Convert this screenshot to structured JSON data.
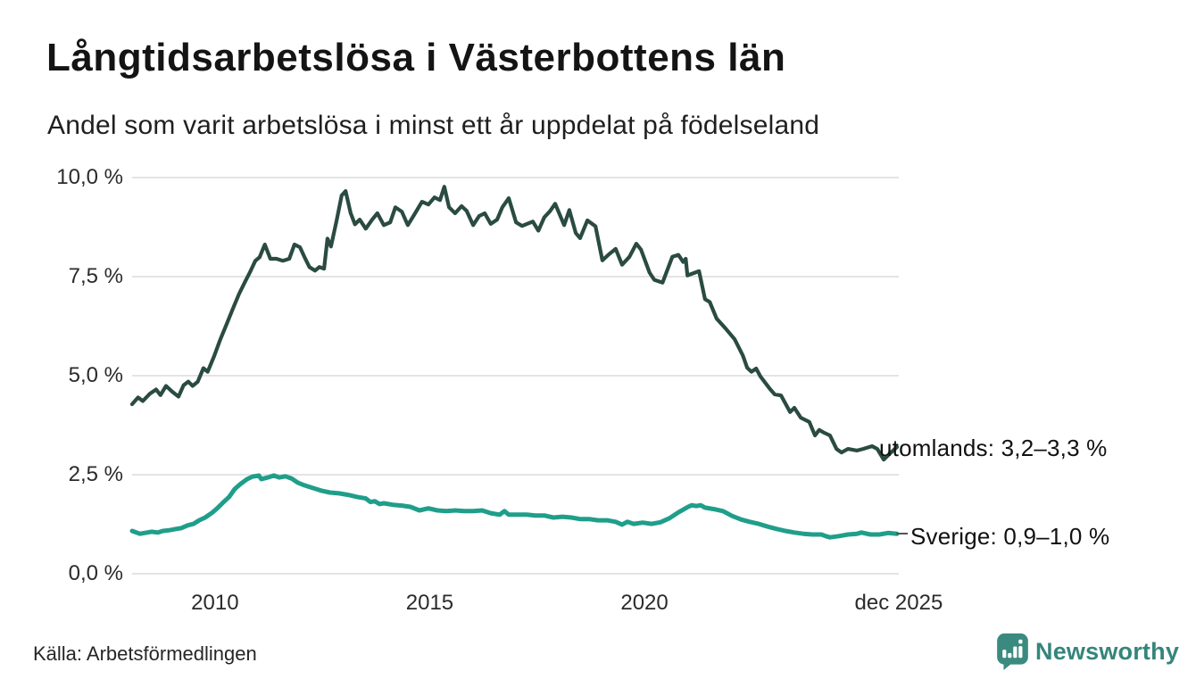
{
  "header": {
    "title": "Långtidsarbetslösa i Västerbottens län",
    "subtitle": "Andel som varit arbetslösa i minst ett år uppdelat på födelseland"
  },
  "chart_data": {
    "type": "line",
    "title": "Långtidsarbetslösa i Västerbottens län",
    "subtitle": "Andel som varit arbetslösa i minst ett år uppdelat på födelseland",
    "unit": "%",
    "grid": true,
    "x_axis": {
      "range": [
        2008.07,
        2025.88
      ],
      "ticks": [
        {
          "label": "2010",
          "year": 2010
        },
        {
          "label": "2015",
          "year": 2015
        },
        {
          "label": "2020",
          "year": 2020
        },
        {
          "label": "dec 2025",
          "year": 2025.92
        }
      ]
    },
    "y_axis": {
      "range": [
        0,
        10
      ],
      "ticks": [
        {
          "label": "0,0 %",
          "value": 0
        },
        {
          "label": "2,5 %",
          "value": 2.5
        },
        {
          "label": "5,0 %",
          "value": 5
        },
        {
          "label": "7,5 %",
          "value": 7.5
        },
        {
          "label": "10,0 %",
          "value": 10
        }
      ]
    },
    "series": [
      {
        "id": "utomlands",
        "name": "utomlands",
        "end_label": "utomlands: 3,2–3,3 %",
        "end_value_range": "3,2–3,3 %",
        "color": "#2a4b42",
        "width": 4.2,
        "points": [
          [
            2008.07,
            4.28
          ],
          [
            2008.21,
            4.45
          ],
          [
            2008.32,
            4.36
          ],
          [
            2008.48,
            4.54
          ],
          [
            2008.63,
            4.65
          ],
          [
            2008.73,
            4.51
          ],
          [
            2008.86,
            4.74
          ],
          [
            2009.0,
            4.6
          ],
          [
            2009.15,
            4.47
          ],
          [
            2009.27,
            4.76
          ],
          [
            2009.38,
            4.85
          ],
          [
            2009.48,
            4.74
          ],
          [
            2009.6,
            4.85
          ],
          [
            2009.73,
            5.19
          ],
          [
            2009.83,
            5.1
          ],
          [
            2009.98,
            5.49
          ],
          [
            2010.12,
            5.9
          ],
          [
            2010.27,
            6.3
          ],
          [
            2010.42,
            6.7
          ],
          [
            2010.56,
            7.06
          ],
          [
            2010.69,
            7.35
          ],
          [
            2010.81,
            7.6
          ],
          [
            2010.94,
            7.9
          ],
          [
            2011.04,
            7.99
          ],
          [
            2011.16,
            8.31
          ],
          [
            2011.29,
            7.95
          ],
          [
            2011.43,
            7.95
          ],
          [
            2011.58,
            7.9
          ],
          [
            2011.73,
            7.95
          ],
          [
            2011.85,
            8.31
          ],
          [
            2011.98,
            8.24
          ],
          [
            2012.08,
            8.0
          ],
          [
            2012.2,
            7.74
          ],
          [
            2012.33,
            7.65
          ],
          [
            2012.43,
            7.74
          ],
          [
            2012.54,
            7.7
          ],
          [
            2012.62,
            8.46
          ],
          [
            2012.7,
            8.26
          ],
          [
            2012.83,
            8.9
          ],
          [
            2012.95,
            9.55
          ],
          [
            2013.04,
            9.66
          ],
          [
            2013.16,
            9.1
          ],
          [
            2013.26,
            8.82
          ],
          [
            2013.37,
            8.94
          ],
          [
            2013.51,
            8.71
          ],
          [
            2013.66,
            8.94
          ],
          [
            2013.78,
            9.1
          ],
          [
            2013.93,
            8.8
          ],
          [
            2014.08,
            8.87
          ],
          [
            2014.2,
            9.25
          ],
          [
            2014.35,
            9.14
          ],
          [
            2014.49,
            8.8
          ],
          [
            2014.62,
            9.03
          ],
          [
            2014.82,
            9.39
          ],
          [
            2014.97,
            9.32
          ],
          [
            2015.11,
            9.5
          ],
          [
            2015.24,
            9.43
          ],
          [
            2015.34,
            9.77
          ],
          [
            2015.45,
            9.25
          ],
          [
            2015.59,
            9.1
          ],
          [
            2015.74,
            9.28
          ],
          [
            2015.86,
            9.16
          ],
          [
            2016.01,
            8.8
          ],
          [
            2016.15,
            9.03
          ],
          [
            2016.28,
            9.1
          ],
          [
            2016.42,
            8.83
          ],
          [
            2016.57,
            8.94
          ],
          [
            2016.69,
            9.25
          ],
          [
            2016.84,
            9.48
          ],
          [
            2017.01,
            8.87
          ],
          [
            2017.15,
            8.78
          ],
          [
            2017.4,
            8.89
          ],
          [
            2017.53,
            8.66
          ],
          [
            2017.67,
            9.0
          ],
          [
            2017.8,
            9.15
          ],
          [
            2017.92,
            9.34
          ],
          [
            2018.13,
            8.8
          ],
          [
            2018.25,
            9.18
          ],
          [
            2018.4,
            8.6
          ],
          [
            2018.5,
            8.47
          ],
          [
            2018.67,
            8.92
          ],
          [
            2018.86,
            8.77
          ],
          [
            2019.02,
            7.91
          ],
          [
            2019.17,
            8.06
          ],
          [
            2019.33,
            8.2
          ],
          [
            2019.48,
            7.8
          ],
          [
            2019.65,
            8.0
          ],
          [
            2019.81,
            8.33
          ],
          [
            2019.92,
            8.18
          ],
          [
            2020.12,
            7.6
          ],
          [
            2020.23,
            7.42
          ],
          [
            2020.42,
            7.35
          ],
          [
            2020.65,
            8.0
          ],
          [
            2020.79,
            8.05
          ],
          [
            2020.9,
            7.87
          ],
          [
            2020.96,
            7.95
          ],
          [
            2021.0,
            7.53
          ],
          [
            2021.17,
            7.6
          ],
          [
            2021.27,
            7.64
          ],
          [
            2021.41,
            6.93
          ],
          [
            2021.52,
            6.86
          ],
          [
            2021.68,
            6.44
          ],
          [
            2021.89,
            6.19
          ],
          [
            2022.1,
            5.92
          ],
          [
            2022.29,
            5.51
          ],
          [
            2022.39,
            5.2
          ],
          [
            2022.49,
            5.1
          ],
          [
            2022.6,
            5.18
          ],
          [
            2022.7,
            4.98
          ],
          [
            2022.91,
            4.68
          ],
          [
            2023.03,
            4.53
          ],
          [
            2023.18,
            4.5
          ],
          [
            2023.39,
            4.08
          ],
          [
            2023.49,
            4.19
          ],
          [
            2023.64,
            3.94
          ],
          [
            2023.84,
            3.83
          ],
          [
            2023.97,
            3.49
          ],
          [
            2024.07,
            3.63
          ],
          [
            2024.18,
            3.56
          ],
          [
            2024.32,
            3.49
          ],
          [
            2024.47,
            3.15
          ],
          [
            2024.59,
            3.06
          ],
          [
            2024.74,
            3.15
          ],
          [
            2024.95,
            3.11
          ],
          [
            2025.09,
            3.15
          ],
          [
            2025.3,
            3.22
          ],
          [
            2025.42,
            3.15
          ],
          [
            2025.57,
            2.88
          ],
          [
            2025.72,
            3.04
          ],
          [
            2025.88,
            3.2
          ]
        ]
      },
      {
        "id": "sverige",
        "name": "Sverige",
        "end_label": "Sverige: 0,9–1,0 %",
        "end_value_range": "0,9–1,0 %",
        "color": "#1f9e8a",
        "width": 5,
        "points": [
          [
            2008.07,
            1.08
          ],
          [
            2008.25,
            1.01
          ],
          [
            2008.42,
            1.04
          ],
          [
            2008.52,
            1.06
          ],
          [
            2008.67,
            1.04
          ],
          [
            2008.79,
            1.08
          ],
          [
            2008.94,
            1.1
          ],
          [
            2009.09,
            1.13
          ],
          [
            2009.21,
            1.15
          ],
          [
            2009.36,
            1.22
          ],
          [
            2009.5,
            1.26
          ],
          [
            2009.63,
            1.35
          ],
          [
            2009.77,
            1.42
          ],
          [
            2009.92,
            1.53
          ],
          [
            2010.04,
            1.64
          ],
          [
            2010.19,
            1.8
          ],
          [
            2010.33,
            1.94
          ],
          [
            2010.46,
            2.14
          ],
          [
            2010.6,
            2.27
          ],
          [
            2010.75,
            2.39
          ],
          [
            2010.87,
            2.45
          ],
          [
            2011.02,
            2.48
          ],
          [
            2011.08,
            2.39
          ],
          [
            2011.23,
            2.43
          ],
          [
            2011.37,
            2.48
          ],
          [
            2011.5,
            2.43
          ],
          [
            2011.64,
            2.46
          ],
          [
            2011.79,
            2.4
          ],
          [
            2011.93,
            2.3
          ],
          [
            2012.06,
            2.24
          ],
          [
            2012.27,
            2.17
          ],
          [
            2012.47,
            2.1
          ],
          [
            2012.68,
            2.05
          ],
          [
            2012.89,
            2.03
          ],
          [
            2013.1,
            1.99
          ],
          [
            2013.31,
            1.94
          ],
          [
            2013.51,
            1.9
          ],
          [
            2013.62,
            1.81
          ],
          [
            2013.72,
            1.83
          ],
          [
            2013.83,
            1.76
          ],
          [
            2013.93,
            1.78
          ],
          [
            2014.14,
            1.74
          ],
          [
            2014.35,
            1.72
          ],
          [
            2014.55,
            1.69
          ],
          [
            2014.76,
            1.6
          ],
          [
            2014.97,
            1.65
          ],
          [
            2015.18,
            1.6
          ],
          [
            2015.38,
            1.58
          ],
          [
            2015.59,
            1.6
          ],
          [
            2015.8,
            1.58
          ],
          [
            2016.01,
            1.58
          ],
          [
            2016.22,
            1.6
          ],
          [
            2016.42,
            1.53
          ],
          [
            2016.63,
            1.49
          ],
          [
            2016.74,
            1.58
          ],
          [
            2016.84,
            1.49
          ],
          [
            2017.05,
            1.49
          ],
          [
            2017.26,
            1.49
          ],
          [
            2017.46,
            1.47
          ],
          [
            2017.67,
            1.47
          ],
          [
            2017.88,
            1.42
          ],
          [
            2018.09,
            1.44
          ],
          [
            2018.3,
            1.42
          ],
          [
            2018.5,
            1.38
          ],
          [
            2018.71,
            1.38
          ],
          [
            2018.92,
            1.35
          ],
          [
            2019.13,
            1.35
          ],
          [
            2019.33,
            1.31
          ],
          [
            2019.48,
            1.24
          ],
          [
            2019.6,
            1.31
          ],
          [
            2019.75,
            1.26
          ],
          [
            2019.96,
            1.29
          ],
          [
            2020.17,
            1.26
          ],
          [
            2020.37,
            1.3
          ],
          [
            2020.58,
            1.4
          ],
          [
            2020.79,
            1.55
          ],
          [
            2021.0,
            1.68
          ],
          [
            2021.1,
            1.73
          ],
          [
            2021.21,
            1.71
          ],
          [
            2021.31,
            1.73
          ],
          [
            2021.41,
            1.67
          ],
          [
            2021.62,
            1.63
          ],
          [
            2021.83,
            1.58
          ],
          [
            2022.04,
            1.46
          ],
          [
            2022.25,
            1.37
          ],
          [
            2022.45,
            1.31
          ],
          [
            2022.66,
            1.26
          ],
          [
            2022.87,
            1.19
          ],
          [
            2023.08,
            1.13
          ],
          [
            2023.28,
            1.08
          ],
          [
            2023.49,
            1.04
          ],
          [
            2023.7,
            1.01
          ],
          [
            2023.91,
            0.99
          ],
          [
            2024.12,
            0.99
          ],
          [
            2024.22,
            0.95
          ],
          [
            2024.32,
            0.92
          ],
          [
            2024.53,
            0.95
          ],
          [
            2024.74,
            0.99
          ],
          [
            2024.95,
            1.01
          ],
          [
            2025.05,
            1.04
          ],
          [
            2025.26,
            0.99
          ],
          [
            2025.47,
            0.99
          ],
          [
            2025.67,
            1.03
          ],
          [
            2025.88,
            1.01
          ]
        ]
      }
    ]
  },
  "annotations": {
    "utomlands": "utomlands: 3,2–3,3 %",
    "sverige": "Sverige: 0,9–1,0 %"
  },
  "footer": {
    "source": "Källa: Arbetsförmedlingen",
    "logo_text": "Newsworthy",
    "logo_icon": "newsworthy-speech-bubble-bar-chart-icon",
    "logo_color": "#35857c"
  }
}
